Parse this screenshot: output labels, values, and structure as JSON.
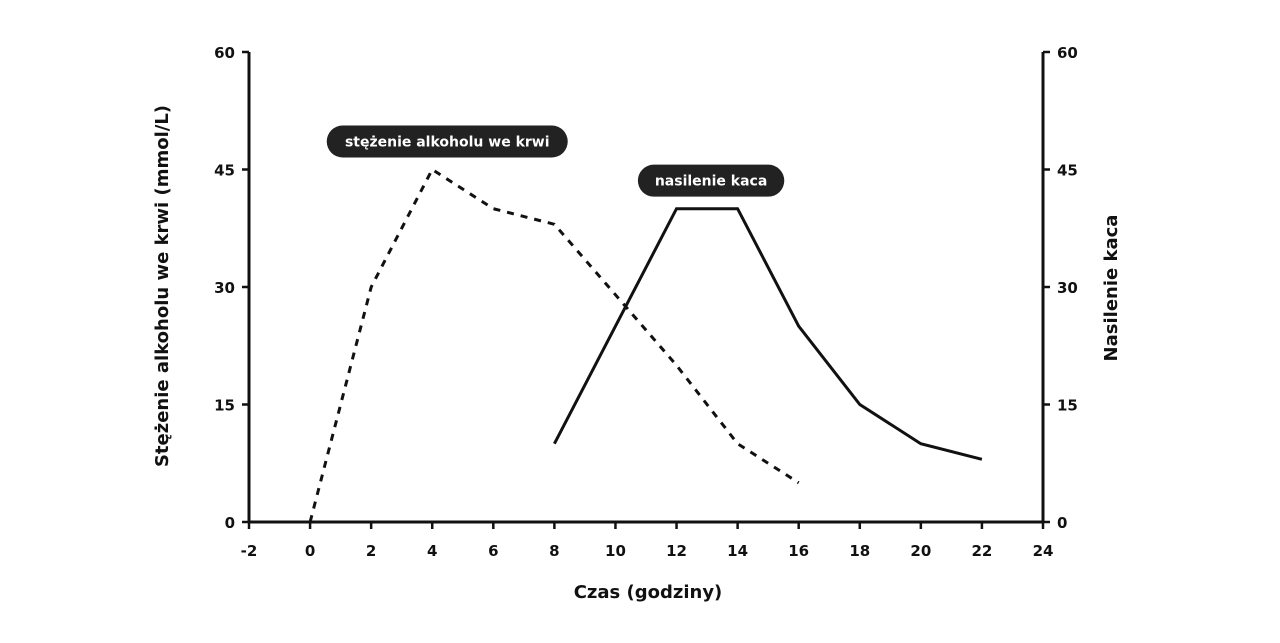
{
  "chart_data": {
    "type": "line",
    "xlabel": "Czas (godziny)",
    "ylabel_left": "Stężenie alkoholu we krwi (mmol/L)",
    "ylabel_right": "Nasilenie kaca",
    "xlim": [
      -2,
      24
    ],
    "ylim": [
      0,
      60
    ],
    "x_ticks": [
      -2,
      0,
      2,
      4,
      6,
      8,
      10,
      12,
      14,
      16,
      18,
      20,
      22,
      24
    ],
    "y_ticks": [
      0,
      15,
      30,
      45,
      60
    ],
    "grid": false,
    "series": [
      {
        "name": "stężenie alkoholu we krwi",
        "style": "dashed",
        "axis": "left",
        "x": [
          0,
          2,
          4,
          6,
          8,
          10,
          12,
          14,
          16
        ],
        "values": [
          0,
          30,
          45,
          40,
          38,
          29,
          20,
          10,
          5
        ]
      },
      {
        "name": "nasilenie kaca",
        "style": "solid",
        "axis": "right",
        "x": [
          8,
          12,
          14,
          16,
          18,
          20,
          22
        ],
        "values": [
          10,
          40,
          40,
          25,
          15,
          10,
          8
        ]
      }
    ],
    "annotations": [
      {
        "text": "stężenie alkoholu we krwi",
        "series": 0
      },
      {
        "text": "nasilenie kaca",
        "series": 1
      }
    ],
    "colors": {
      "line": "#111111",
      "pill_bg": "#222222",
      "pill_text": "#ffffff"
    }
  }
}
